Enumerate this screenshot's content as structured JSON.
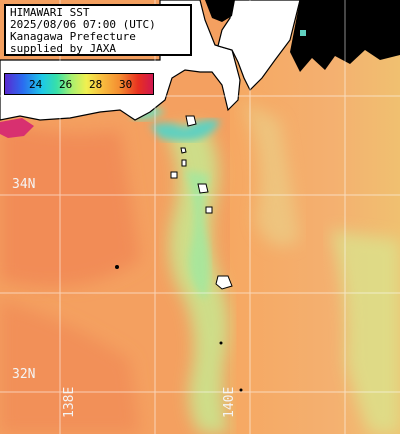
{
  "info": {
    "lines": [
      "HIMAWARI SST",
      "2025/08/06 07:00 (UTC)",
      "Kanagawa Prefecture",
      "supplied by JAXA"
    ]
  },
  "colorbar": {
    "ticks": [
      "24",
      "26",
      "28",
      "30"
    ],
    "colors": [
      "#5a2ad0",
      "#2a6cf0",
      "#1ec8e8",
      "#38e0a8",
      "#a8f070",
      "#f0f050",
      "#f8c040",
      "#f48a30",
      "#e83020",
      "#d01850"
    ]
  },
  "grid": {
    "lat_labels": [
      "34N",
      "32N"
    ],
    "lon_labels": [
      "138E",
      "140E"
    ]
  },
  "colors": {
    "sea_warm": "#f4a060",
    "sea_hot": "#f08050",
    "front_cool": "#b8e888",
    "front_cold": "#60d0b0",
    "land": "#ffffff",
    "coast": "#000000",
    "cloud_mask": "#000000",
    "grid_line": "#ffffff"
  }
}
